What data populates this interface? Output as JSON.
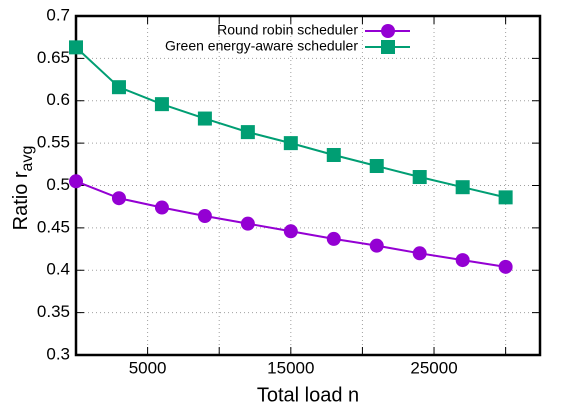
{
  "chart_data": {
    "type": "line",
    "xlabel": "Total load n",
    "ylabel": "Ratio r",
    "ylabel_sub": "avg",
    "x": [
      0,
      3000,
      6000,
      9000,
      12000,
      15000,
      18000,
      21000,
      24000,
      27000,
      30000
    ],
    "series": [
      {
        "name": "Round robin scheduler",
        "color": "#9400d3",
        "marker": "circle",
        "values": [
          0.505,
          0.485,
          0.474,
          0.464,
          0.455,
          0.446,
          0.437,
          0.429,
          0.42,
          0.412,
          0.404
        ]
      },
      {
        "name": "Green energy-aware scheduler",
        "color": "#009e73",
        "marker": "square",
        "values": [
          0.663,
          0.616,
          0.596,
          0.579,
          0.563,
          0.55,
          0.536,
          0.523,
          0.51,
          0.498,
          0.486
        ]
      }
    ],
    "xlim": [
      0,
      32400
    ],
    "xticks": [
      5000,
      15000,
      25000
    ],
    "xminorticks": [
      10000,
      20000,
      30000
    ],
    "ylim": [
      0.3,
      0.7
    ],
    "yticks": [
      0.3,
      0.35,
      0.4,
      0.45,
      0.5,
      0.55,
      0.6,
      0.65,
      0.7
    ],
    "grid": true,
    "legend": "top-right"
  }
}
